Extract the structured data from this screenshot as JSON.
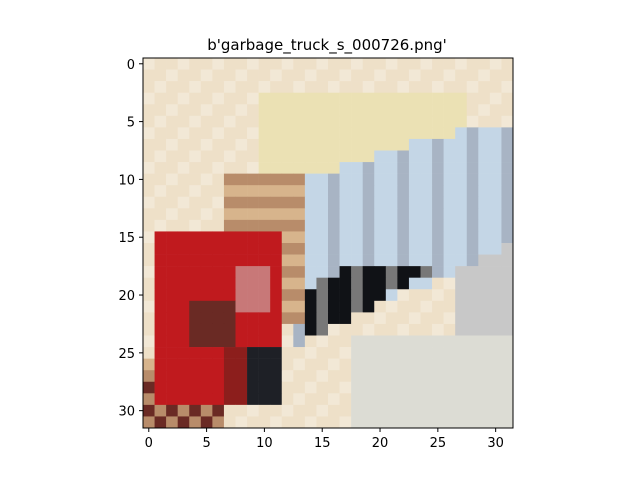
{
  "figure": {
    "title": "b'garbage_truck_s_000726.png'"
  },
  "axes": {
    "x_ticks": [
      "0",
      "5",
      "10",
      "15",
      "20",
      "25",
      "30"
    ],
    "y_ticks": [
      "0",
      "5",
      "10",
      "15",
      "20",
      "25",
      "30"
    ],
    "x_tick_values": [
      0,
      5,
      10,
      15,
      20,
      25,
      30
    ],
    "y_tick_values": [
      0,
      5,
      10,
      15,
      20,
      25,
      30
    ],
    "xlim": [
      -0.5,
      31.5
    ],
    "ylim": [
      31.5,
      -0.5
    ]
  },
  "image": {
    "grid_size": 32,
    "palette": {
      "cream": "#eee0c8",
      "cream_light": "#f2e8d6",
      "yellowish": "#ebe1b4",
      "tan": "#d7b48c",
      "brown": "#b88c6a",
      "red": "#c01a1e",
      "red_dark": "#8c1e1c",
      "maroon": "#6a2a24",
      "pink": "#c87878",
      "lightblue": "#c4d6e6",
      "blue_grey": "#a8b4c4",
      "grey": "#c8c8c8",
      "dark_grey": "#787878",
      "near_black": "#1e2026",
      "black": "#101216",
      "offwhite": "#dcdcd4"
    }
  }
}
